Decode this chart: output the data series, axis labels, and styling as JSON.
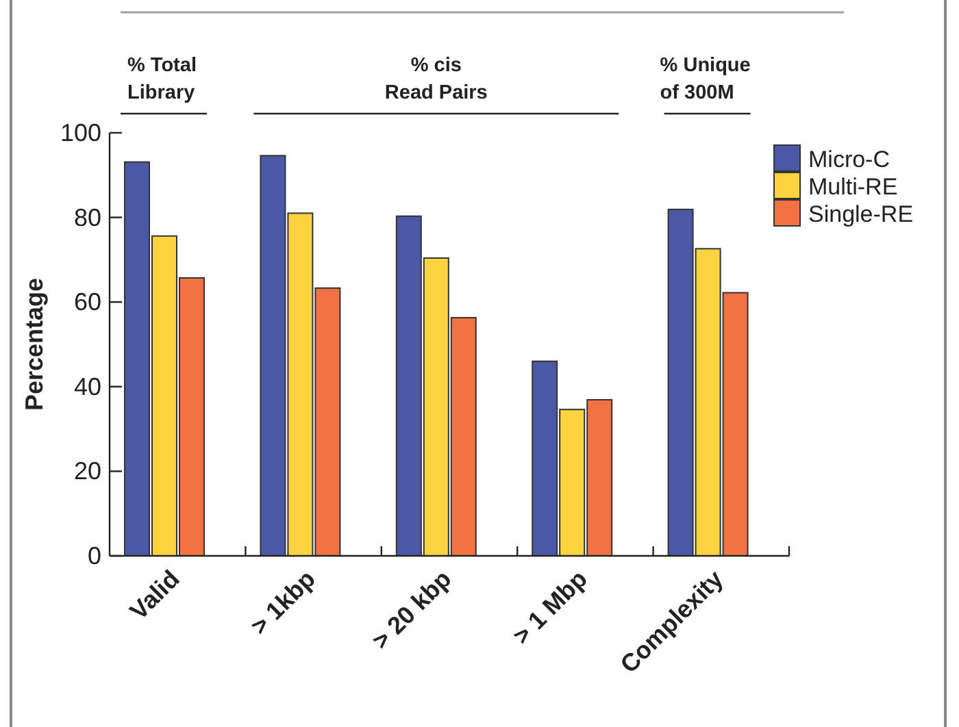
{
  "chart_data": {
    "type": "bar",
    "ylabel": "Percentage",
    "categories": [
      "Valid",
      "> 1kbp",
      "> 20 kbp",
      "> 1 Mbp",
      "Complexity"
    ],
    "series": [
      {
        "name": "Micro-C",
        "color": "#4a58a6",
        "values": [
          93.1,
          94.6,
          80.3,
          46.0,
          81.9
        ]
      },
      {
        "name": "Multi-RE",
        "color": "#fdd43f",
        "values": [
          75.6,
          81.0,
          70.4,
          34.6,
          72.6
        ]
      },
      {
        "name": "Single-RE",
        "color": "#f37244",
        "values": [
          65.7,
          63.3,
          56.3,
          36.9,
          62.2
        ]
      }
    ],
    "ylim": [
      0,
      100
    ],
    "yticks": [
      0,
      20,
      40,
      60,
      80,
      100
    ],
    "grid": false,
    "legend": "top right",
    "annotations": [
      "% Total\nLibrary",
      "% cis\nRead Pairs",
      "% Unique\nof 300M"
    ]
  }
}
